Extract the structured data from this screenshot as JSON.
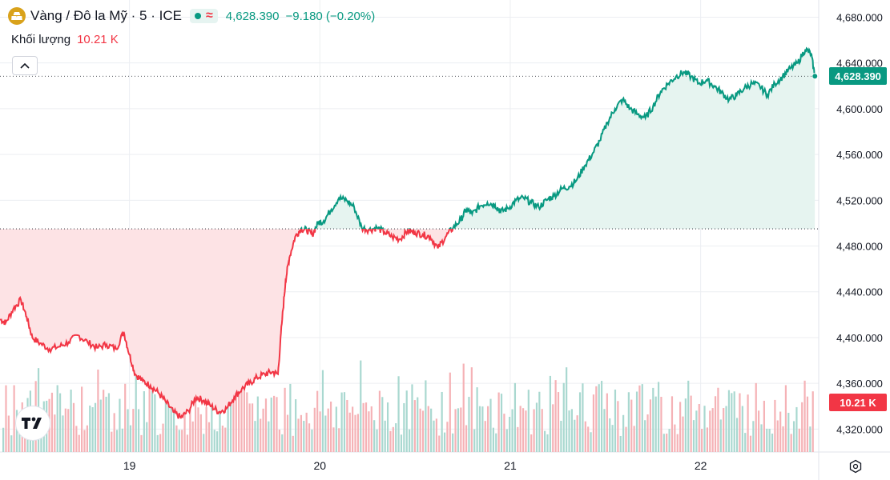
{
  "legend": {
    "title": "Vàng / Đô la Mỹ · 5 · ICE",
    "price": "4,628.390",
    "change": "−9.180 (−0.20%)",
    "volume_label": "Khối lượng",
    "volume_value": "10.21 K",
    "symbol_icon": "gold-bars-icon",
    "collapse_icon": "chevron-up-icon"
  },
  "tags": {
    "last_price": "4,628.390",
    "volume": "10.21 K"
  },
  "colors": {
    "up": "#089981",
    "down": "#f23645",
    "up_fill": "#e6f4f0",
    "down_fill": "#fde3e5",
    "vol_up": "#a9d8d0",
    "vol_down": "#f5b2b6",
    "grid": "#eceef2",
    "axis_text": "#131722",
    "symbol": "#d9a21b"
  },
  "chart_data": {
    "type": "area",
    "baseline": 4495,
    "last_value": 4628.39,
    "ylim": [
      4300,
      4695
    ],
    "y_ticks": [
      4320,
      4360,
      4400,
      4440,
      4480,
      4520,
      4560,
      4600,
      4640,
      4680
    ],
    "y_tick_labels": [
      "4,320.000",
      "4,360.000",
      "4,400.000",
      "4,440.000",
      "4,480.000",
      "4,520.000",
      "4,560.000",
      "4,600.000",
      "4,640.000",
      "4,680.000"
    ],
    "x_range": [
      18.32,
      22.62
    ],
    "x_ticks": [
      19,
      20,
      21,
      22
    ],
    "x_tick_labels": [
      "19",
      "20",
      "21",
      "22"
    ],
    "grid": true,
    "series": [
      {
        "values": [
          [
            18.32,
            4416
          ],
          [
            18.35,
            4413
          ],
          [
            18.39,
            4425
          ],
          [
            18.43,
            4433
          ],
          [
            18.46,
            4418
          ],
          [
            18.49,
            4400
          ],
          [
            18.53,
            4395
          ],
          [
            18.58,
            4390
          ],
          [
            18.63,
            4392
          ],
          [
            18.68,
            4396
          ],
          [
            18.73,
            4402
          ],
          [
            18.78,
            4396
          ],
          [
            18.83,
            4391
          ],
          [
            18.88,
            4394
          ],
          [
            18.93,
            4390
          ],
          [
            18.97,
            4405
          ],
          [
            19.0,
            4385
          ],
          [
            19.03,
            4368
          ],
          [
            19.07,
            4362
          ],
          [
            19.11,
            4358
          ],
          [
            19.15,
            4352
          ],
          [
            19.19,
            4344
          ],
          [
            19.23,
            4335
          ],
          [
            19.27,
            4330
          ],
          [
            19.31,
            4336
          ],
          [
            19.35,
            4348
          ],
          [
            19.39,
            4345
          ],
          [
            19.43,
            4340
          ],
          [
            19.47,
            4335
          ],
          [
            19.51,
            4338
          ],
          [
            19.55,
            4348
          ],
          [
            19.59,
            4355
          ],
          [
            19.63,
            4360
          ],
          [
            19.67,
            4365
          ],
          [
            19.71,
            4368
          ],
          [
            19.75,
            4370
          ],
          [
            19.78,
            4368
          ],
          [
            19.8,
            4412
          ],
          [
            19.82,
            4450
          ],
          [
            19.84,
            4470
          ],
          [
            19.87,
            4488
          ],
          [
            19.9,
            4495
          ],
          [
            19.93,
            4494
          ],
          [
            19.96,
            4490
          ],
          [
            19.99,
            4500
          ],
          [
            20.02,
            4502
          ],
          [
            20.06,
            4512
          ],
          [
            20.1,
            4522
          ],
          [
            20.14,
            4520
          ],
          [
            20.18,
            4514
          ],
          [
            20.22,
            4496
          ],
          [
            20.26,
            4494
          ],
          [
            20.3,
            4496
          ],
          [
            20.34,
            4492
          ],
          [
            20.38,
            4488
          ],
          [
            20.42,
            4486
          ],
          [
            20.46,
            4493
          ],
          [
            20.5,
            4492
          ],
          [
            20.54,
            4490
          ],
          [
            20.58,
            4488
          ],
          [
            20.62,
            4478
          ],
          [
            20.66,
            4488
          ],
          [
            20.7,
            4496
          ],
          [
            20.74,
            4503
          ],
          [
            20.77,
            4512
          ],
          [
            20.8,
            4508
          ],
          [
            20.84,
            4515
          ],
          [
            20.88,
            4518
          ],
          [
            20.92,
            4516
          ],
          [
            20.95,
            4510
          ],
          [
            20.99,
            4513
          ],
          [
            21.03,
            4520
          ],
          [
            21.07,
            4522
          ],
          [
            21.11,
            4518
          ],
          [
            21.15,
            4514
          ],
          [
            21.19,
            4520
          ],
          [
            21.23,
            4524
          ],
          [
            21.27,
            4530
          ],
          [
            21.31,
            4532
          ],
          [
            21.35,
            4538
          ],
          [
            21.39,
            4550
          ],
          [
            21.43,
            4560
          ],
          [
            21.47,
            4572
          ],
          [
            21.51,
            4588
          ],
          [
            21.55,
            4600
          ],
          [
            21.59,
            4608
          ],
          [
            21.63,
            4600
          ],
          [
            21.67,
            4595
          ],
          [
            21.71,
            4592
          ],
          [
            21.75,
            4602
          ],
          [
            21.79,
            4615
          ],
          [
            21.83,
            4622
          ],
          [
            21.87,
            4628
          ],
          [
            21.91,
            4632
          ],
          [
            21.95,
            4628
          ],
          [
            21.99,
            4622
          ],
          [
            22.03,
            4625
          ],
          [
            22.07,
            4620
          ],
          [
            22.11,
            4614
          ],
          [
            22.15,
            4608
          ],
          [
            22.19,
            4612
          ],
          [
            22.23,
            4618
          ],
          [
            22.27,
            4622
          ],
          [
            22.31,
            4620
          ],
          [
            22.35,
            4612
          ],
          [
            22.39,
            4622
          ],
          [
            22.43,
            4628
          ],
          [
            22.47,
            4635
          ],
          [
            22.51,
            4640
          ],
          [
            22.55,
            4652
          ],
          [
            22.58,
            4648
          ],
          [
            22.6,
            4628.39
          ]
        ]
      }
    ]
  }
}
